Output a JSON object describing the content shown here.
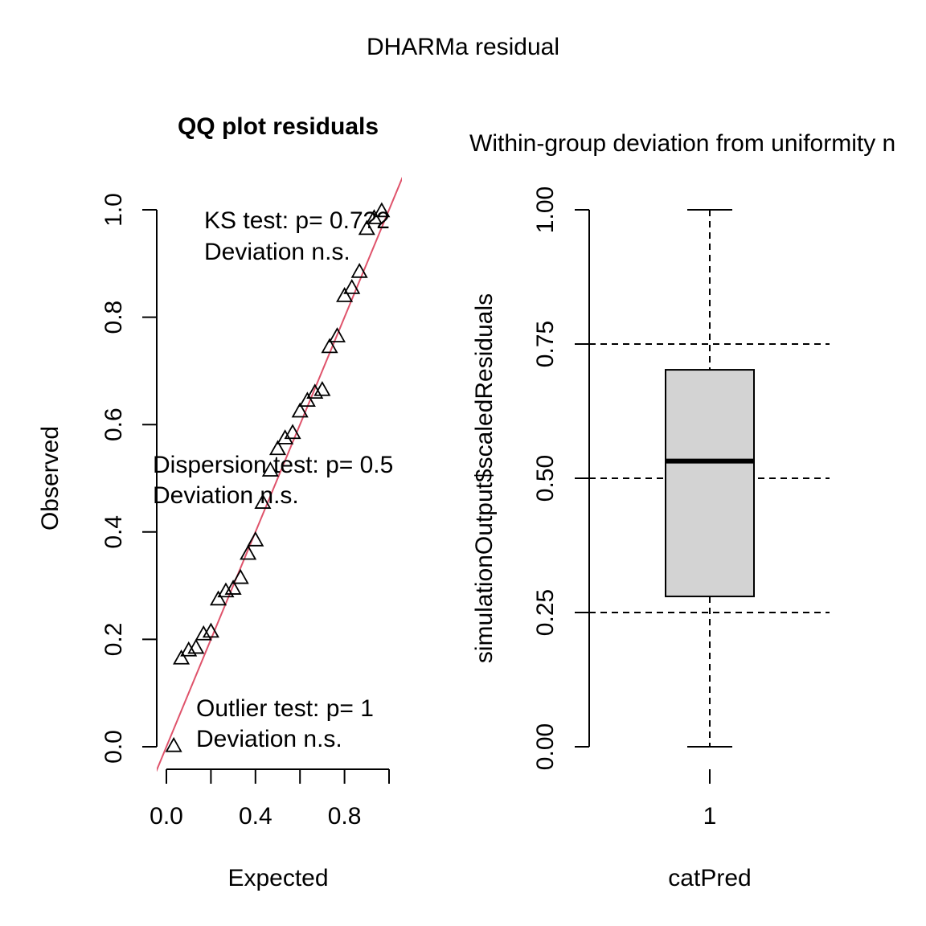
{
  "figure": {
    "title": "DHARMa residual"
  },
  "chart_data": [
    {
      "type": "scatter",
      "title": "QQ plot residuals",
      "xlabel": "Expected",
      "ylabel": "Observed",
      "xlim": [
        0,
        1
      ],
      "ylim": [
        0,
        1
      ],
      "xticks": [
        0.0,
        0.2,
        0.4,
        0.6,
        0.8,
        1.0
      ],
      "xtick_labels": [
        "0.0",
        "",
        "0.4",
        "",
        "0.8",
        ""
      ],
      "yticks": [
        0.0,
        0.2,
        0.4,
        0.6,
        0.8,
        1.0
      ],
      "ytick_labels": [
        "0.0",
        "0.2",
        "0.4",
        "0.6",
        "0.8",
        "1.0"
      ],
      "x": [
        0.033,
        0.067,
        0.1,
        0.133,
        0.167,
        0.2,
        0.233,
        0.267,
        0.3,
        0.333,
        0.367,
        0.4,
        0.433,
        0.467,
        0.5,
        0.533,
        0.567,
        0.6,
        0.633,
        0.667,
        0.7,
        0.733,
        0.767,
        0.8,
        0.833,
        0.867,
        0.9,
        0.933,
        0.967
      ],
      "y": [
        0.002,
        0.165,
        0.18,
        0.185,
        0.21,
        0.215,
        0.275,
        0.29,
        0.295,
        0.315,
        0.36,
        0.385,
        0.455,
        0.515,
        0.555,
        0.575,
        0.585,
        0.625,
        0.645,
        0.66,
        0.665,
        0.745,
        0.765,
        0.84,
        0.855,
        0.885,
        0.965,
        0.985,
        0.998
      ],
      "reference_line": {
        "intercept": 0,
        "slope": 1,
        "color": "#DF536B"
      },
      "annotations": {
        "ks": [
          "KS test: p= 0.7?2",
          "Deviation  n.s."
        ],
        "dispersion": [
          "Dispersion test: p= 0.5",
          "Deviation  n.s."
        ],
        "outlier": [
          "Outlier test: p= 1",
          "Deviation  n.s."
        ]
      },
      "marker": "open-triangle"
    },
    {
      "type": "box",
      "title": "Within-group deviation from uniformity n",
      "xlabel": "catPred",
      "ylabel": "simulationOutput$scaledResiduals",
      "categories": [
        "1"
      ],
      "ylim": [
        0,
        1
      ],
      "yticks": [
        0.0,
        0.25,
        0.5,
        0.75,
        1.0
      ],
      "ytick_labels": [
        "0.00",
        "0.25",
        "0.50",
        "0.75",
        "1.00"
      ],
      "boxes": [
        {
          "category": "1",
          "min": 0.0,
          "q1": 0.28,
          "median": 0.532,
          "q3": 0.702,
          "max": 1.0
        }
      ],
      "reference_lines": [
        0.25,
        0.5,
        0.75
      ],
      "box_color": "#D3D3D3"
    }
  ]
}
